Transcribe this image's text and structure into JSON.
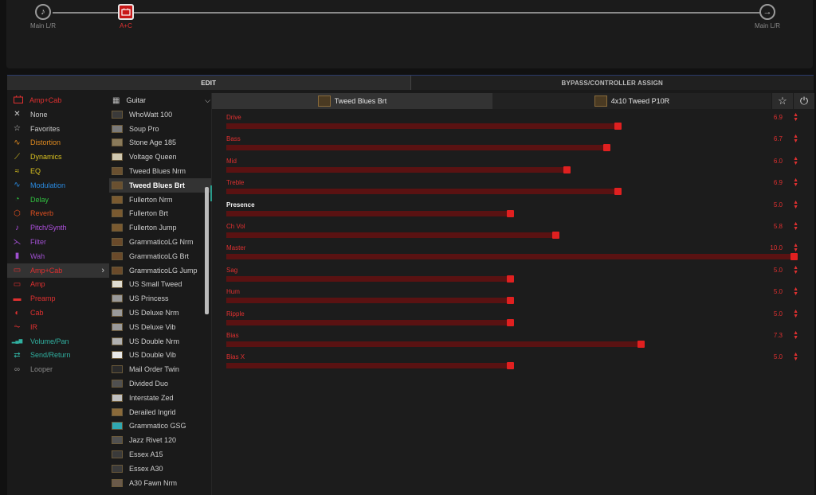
{
  "chain": {
    "input_label": "Main L/R",
    "amp_label": "A+C",
    "output_label": "Main L/R"
  },
  "tabs": {
    "edit": "EDIT",
    "bypass": "BYPASS/CONTROLLER ASSIGN"
  },
  "category": {
    "header": "Amp+Cab",
    "items": [
      {
        "label": "None",
        "icon": "x-icon",
        "color": "#cccccc"
      },
      {
        "label": "Favorites",
        "icon": "star-icon",
        "color": "#cccccc"
      },
      {
        "label": "Distortion",
        "icon": "distortion-icon",
        "color": "#e08a20"
      },
      {
        "label": "Dynamics",
        "icon": "dynamics-icon",
        "color": "#d8c020"
      },
      {
        "label": "EQ",
        "icon": "eq-icon",
        "color": "#d8c020"
      },
      {
        "label": "Modulation",
        "icon": "modulation-icon",
        "color": "#2a8ae0"
      },
      {
        "label": "Delay",
        "icon": "delay-icon",
        "color": "#30c040"
      },
      {
        "label": "Reverb",
        "icon": "reverb-icon",
        "color": "#e05020"
      },
      {
        "label": "Pitch/Synth",
        "icon": "pitch-icon",
        "color": "#b050e0"
      },
      {
        "label": "Filter",
        "icon": "filter-icon",
        "color": "#a050d0"
      },
      {
        "label": "Wah",
        "icon": "wah-icon",
        "color": "#a050d0"
      },
      {
        "label": "Amp+Cab",
        "icon": "amp-cab-icon",
        "color": "#e03030",
        "selected": true
      },
      {
        "label": "Amp",
        "icon": "amp-icon",
        "color": "#e03030"
      },
      {
        "label": "Preamp",
        "icon": "preamp-icon",
        "color": "#e03030"
      },
      {
        "label": "Cab",
        "icon": "cab-icon",
        "color": "#e03030"
      },
      {
        "label": "IR",
        "icon": "ir-icon",
        "color": "#e03030"
      },
      {
        "label": "Volume/Pan",
        "icon": "volume-icon",
        "color": "#30b0a0"
      },
      {
        "label": "Send/Return",
        "icon": "send-return-icon",
        "color": "#30b0a0"
      },
      {
        "label": "Looper",
        "icon": "looper-icon",
        "color": "#888888"
      }
    ]
  },
  "models": {
    "header": "Guitar",
    "items": [
      {
        "label": "WhoWatt 100",
        "thumb": "#3a3a3a"
      },
      {
        "label": "Soup Pro",
        "thumb": "#7a7a7a"
      },
      {
        "label": "Stone Age 185",
        "thumb": "#8a7a5a"
      },
      {
        "label": "Voltage Queen",
        "thumb": "#d0c8b0"
      },
      {
        "label": "Tweed Blues Nrm",
        "thumb": "#6a5030"
      },
      {
        "label": "Tweed Blues Brt",
        "thumb": "#6a5030",
        "selected": true
      },
      {
        "label": "Fullerton Nrm",
        "thumb": "#7a5a30"
      },
      {
        "label": "Fullerton Brt",
        "thumb": "#7a5a30"
      },
      {
        "label": "Fullerton Jump",
        "thumb": "#7a5a30"
      },
      {
        "label": "GrammaticoLG Nrm",
        "thumb": "#6a4a2a"
      },
      {
        "label": "GrammaticoLG Brt",
        "thumb": "#6a4a2a"
      },
      {
        "label": "GrammaticoLG Jump",
        "thumb": "#6a4a2a"
      },
      {
        "label": "US Small Tweed",
        "thumb": "#e0dcd0"
      },
      {
        "label": "US Princess",
        "thumb": "#9a9a9a"
      },
      {
        "label": "US Deluxe Nrm",
        "thumb": "#9a9a9a"
      },
      {
        "label": "US Deluxe Vib",
        "thumb": "#9a9a9a"
      },
      {
        "label": "US Double Nrm",
        "thumb": "#b0b0b0"
      },
      {
        "label": "US Double Vib",
        "thumb": "#e8e8e8"
      },
      {
        "label": "Mail Order Twin",
        "thumb": "#2a2a2a"
      },
      {
        "label": "Divided Duo",
        "thumb": "#505050"
      },
      {
        "label": "Interstate Zed",
        "thumb": "#c0c0c0"
      },
      {
        "label": "Derailed Ingrid",
        "thumb": "#8a6a3a"
      },
      {
        "label": "Grammatico GSG",
        "thumb": "#30a8b0"
      },
      {
        "label": "Jazz Rivet 120",
        "thumb": "#505050"
      },
      {
        "label": "Essex A15",
        "thumb": "#3a3a3a"
      },
      {
        "label": "Essex A30",
        "thumb": "#3a3a3a"
      },
      {
        "label": "A30 Fawn Nrm",
        "thumb": "#6a5a4a"
      }
    ]
  },
  "block_tabs": {
    "amp": "Tweed Blues Brt",
    "cab": "4x10 Tweed P10R"
  },
  "params": [
    {
      "name": "Drive",
      "value": "6.9",
      "level": 0.69
    },
    {
      "name": "Bass",
      "value": "6.7",
      "level": 0.67
    },
    {
      "name": "Mid",
      "value": "6.0",
      "level": 0.6
    },
    {
      "name": "Treble",
      "value": "6.9",
      "level": 0.69
    },
    {
      "name": "Presence",
      "value": "5.0",
      "level": 0.5,
      "highlight": true
    },
    {
      "name": "Ch Vol",
      "value": "5.8",
      "level": 0.58
    },
    {
      "name": "Master",
      "value": "10.0",
      "level": 1.0
    },
    {
      "name": "Sag",
      "value": "5.0",
      "level": 0.5
    },
    {
      "name": "Hum",
      "value": "5.0",
      "level": 0.5
    },
    {
      "name": "Ripple",
      "value": "5.0",
      "level": 0.5
    },
    {
      "name": "Bias",
      "value": "7.3",
      "level": 0.73
    },
    {
      "name": "Bias X",
      "value": "5.0",
      "level": 0.5
    }
  ],
  "colors": {
    "accent": "#e02020",
    "track": "#5a1212"
  }
}
